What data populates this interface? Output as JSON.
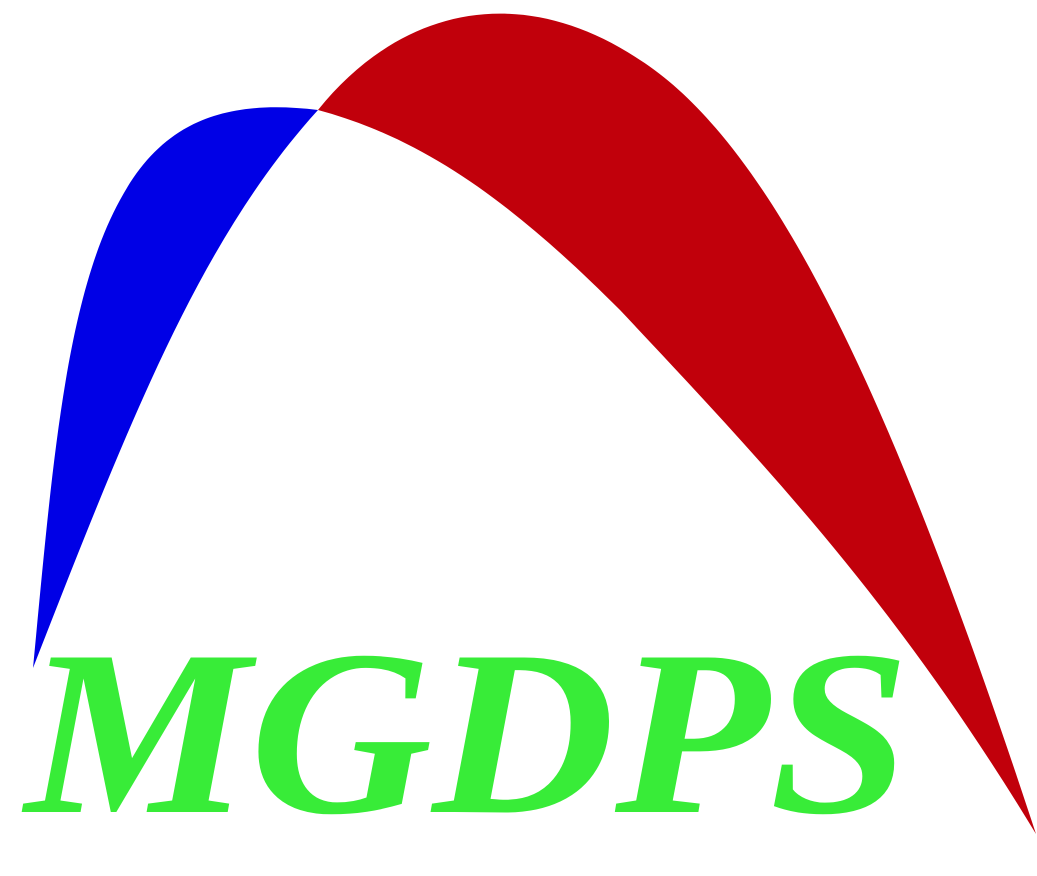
{
  "logo": {
    "text": "MGDPS",
    "colors": {
      "background": "#ffffff",
      "left_arc": "#0000e6",
      "right_arc": "#c1000b",
      "text": "#38ec38"
    }
  }
}
